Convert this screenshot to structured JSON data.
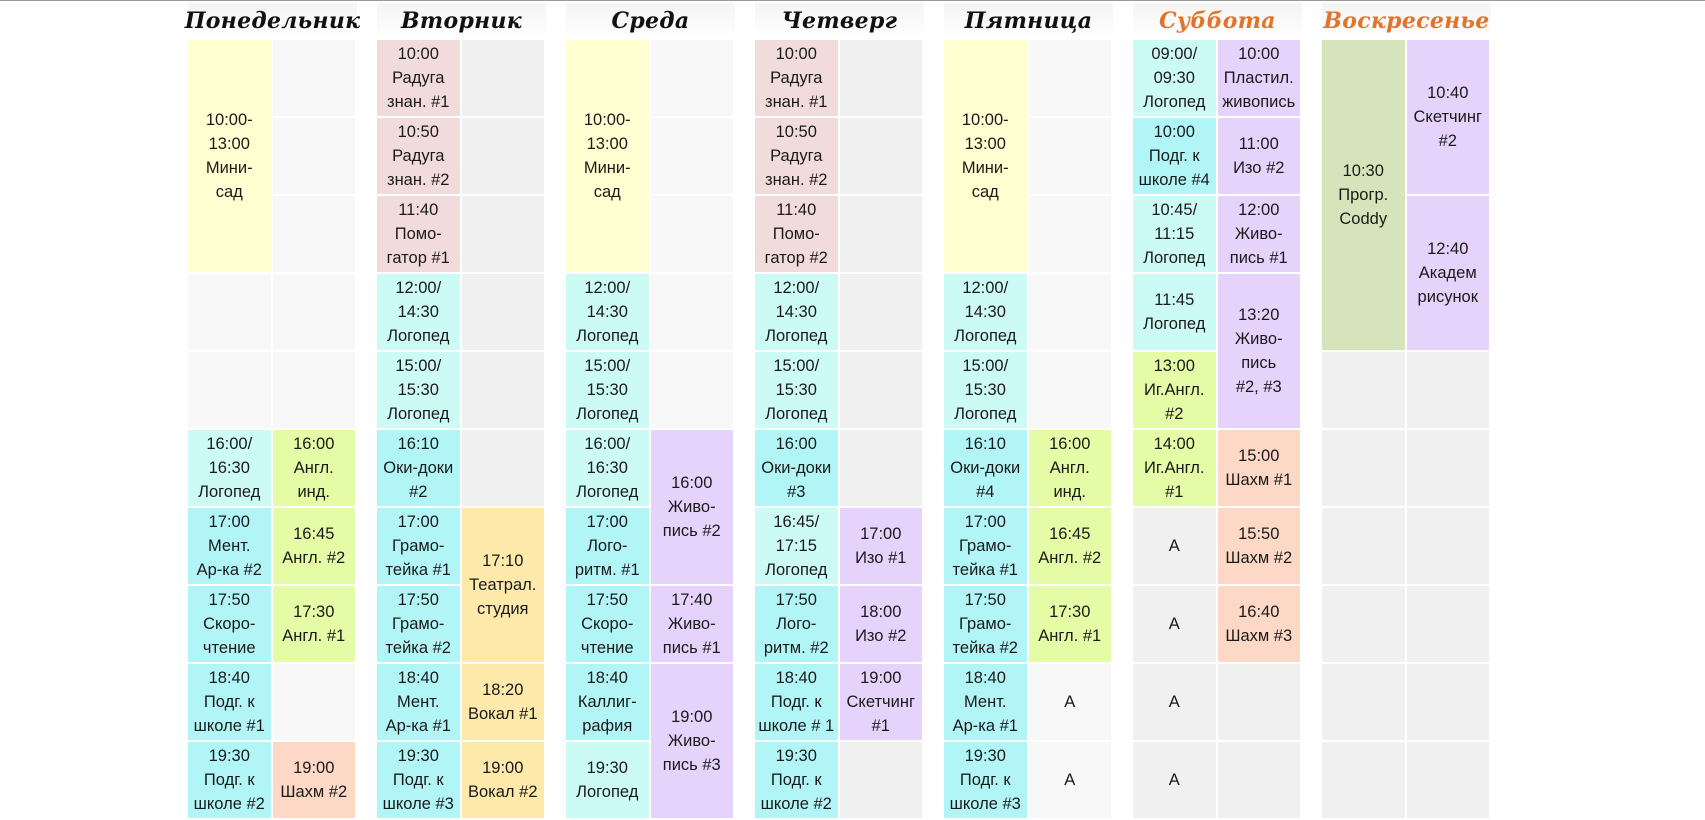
{
  "days": [
    {
      "name": "Понедельник",
      "weekend": false
    },
    {
      "name": "Вторник",
      "weekend": false
    },
    {
      "name": "Среда",
      "weekend": false
    },
    {
      "name": "Четверг",
      "weekend": false
    },
    {
      "name": "Пятница",
      "weekend": false
    },
    {
      "name": "Суббота",
      "weekend": true
    },
    {
      "name": "Воскресенье",
      "weekend": true
    }
  ],
  "colors": {
    "yellow": "#ffffd1",
    "pink": "#f2dcdb",
    "cyan": "#b2f5f7",
    "cyan_light": "#ccfaf5",
    "light_green": "#e4fca6",
    "purple": "#e6d3fc",
    "orange": "#fde9a9",
    "salmon": "#fdd8c6",
    "olive": "#d6e4bc",
    "empty": "#f8f8f8",
    "grey": "#f0f0f0",
    "weekend_header": "#e0742d"
  },
  "entries": [
    {
      "day": 0,
      "col": 0,
      "row": 0,
      "span": 3,
      "color": "yellow",
      "text": "10:00-\n13:00\nМини-\nсад"
    },
    {
      "day": 0,
      "col": 1,
      "row": 0,
      "span": 1,
      "color": "empty",
      "text": ""
    },
    {
      "day": 0,
      "col": 1,
      "row": 1,
      "span": 1,
      "color": "empty",
      "text": ""
    },
    {
      "day": 0,
      "col": 1,
      "row": 2,
      "span": 1,
      "color": "empty",
      "text": ""
    },
    {
      "day": 0,
      "col": 0,
      "row": 3,
      "span": 1,
      "color": "empty",
      "text": ""
    },
    {
      "day": 0,
      "col": 1,
      "row": 3,
      "span": 1,
      "color": "empty",
      "text": ""
    },
    {
      "day": 0,
      "col": 0,
      "row": 4,
      "span": 1,
      "color": "empty",
      "text": ""
    },
    {
      "day": 0,
      "col": 1,
      "row": 4,
      "span": 1,
      "color": "empty",
      "text": ""
    },
    {
      "day": 0,
      "col": 0,
      "row": 5,
      "span": 1,
      "color": "cyan_light",
      "text": "16:00/\n16:30\nЛогопед"
    },
    {
      "day": 0,
      "col": 1,
      "row": 5,
      "span": 1,
      "color": "light_green",
      "text": "16:00\nАнгл.\nинд."
    },
    {
      "day": 0,
      "col": 0,
      "row": 6,
      "span": 1,
      "color": "cyan",
      "text": "17:00\nМент.\nАр-ка #2"
    },
    {
      "day": 0,
      "col": 1,
      "row": 6,
      "span": 1,
      "color": "light_green",
      "text": "16:45\nАнгл. #2"
    },
    {
      "day": 0,
      "col": 0,
      "row": 7,
      "span": 1,
      "color": "cyan",
      "text": "17:50\nСкоро-\nчтение"
    },
    {
      "day": 0,
      "col": 1,
      "row": 7,
      "span": 1,
      "color": "light_green",
      "text": "17:30\nАнгл. #1"
    },
    {
      "day": 0,
      "col": 0,
      "row": 8,
      "span": 1,
      "color": "cyan",
      "text": "18:40\nПодг. к\nшколе #1"
    },
    {
      "day": 0,
      "col": 1,
      "row": 8,
      "span": 1,
      "color": "empty",
      "text": ""
    },
    {
      "day": 0,
      "col": 0,
      "row": 9,
      "span": 1,
      "color": "cyan",
      "text": "19:30\nПодг. к\nшколе #2"
    },
    {
      "day": 0,
      "col": 1,
      "row": 9,
      "span": 1,
      "color": "salmon",
      "text": "19:00\nШахм #2"
    },
    {
      "day": 1,
      "col": 0,
      "row": 0,
      "span": 1,
      "color": "pink",
      "text": "10:00\nРадуга\nзнан. #1"
    },
    {
      "day": 1,
      "col": 0,
      "row": 1,
      "span": 1,
      "color": "pink",
      "text": "10:50\nРадуга\nзнан. #2"
    },
    {
      "day": 1,
      "col": 0,
      "row": 2,
      "span": 1,
      "color": "pink",
      "text": "11:40\nПомо-\nгатор #1"
    },
    {
      "day": 1,
      "col": 1,
      "row": 0,
      "span": 1,
      "color": "grey",
      "text": ""
    },
    {
      "day": 1,
      "col": 1,
      "row": 1,
      "span": 1,
      "color": "grey",
      "text": ""
    },
    {
      "day": 1,
      "col": 1,
      "row": 2,
      "span": 1,
      "color": "grey",
      "text": ""
    },
    {
      "day": 1,
      "col": 0,
      "row": 3,
      "span": 1,
      "color": "cyan_light",
      "text": "12:00/\n14:30\nЛогопед"
    },
    {
      "day": 1,
      "col": 1,
      "row": 3,
      "span": 1,
      "color": "grey",
      "text": ""
    },
    {
      "day": 1,
      "col": 0,
      "row": 4,
      "span": 1,
      "color": "cyan_light",
      "text": "15:00/\n15:30\nЛогопед"
    },
    {
      "day": 1,
      "col": 1,
      "row": 4,
      "span": 1,
      "color": "grey",
      "text": ""
    },
    {
      "day": 1,
      "col": 0,
      "row": 5,
      "span": 1,
      "color": "cyan",
      "text": "16:10\nОки-доки\n#2"
    },
    {
      "day": 1,
      "col": 1,
      "row": 5,
      "span": 1,
      "color": "grey",
      "text": ""
    },
    {
      "day": 1,
      "col": 0,
      "row": 6,
      "span": 1,
      "color": "cyan",
      "text": "17:00\nГрамо-\nтейка #1"
    },
    {
      "day": 1,
      "col": 1,
      "row": 6,
      "span": 2,
      "color": "orange",
      "text": "17:10\nТеатрал.\nстудия"
    },
    {
      "day": 1,
      "col": 0,
      "row": 7,
      "span": 1,
      "color": "cyan",
      "text": "17:50\nГрамо-\nтейка #2"
    },
    {
      "day": 1,
      "col": 0,
      "row": 8,
      "span": 1,
      "color": "cyan",
      "text": "18:40\nМент.\nАр-ка #1"
    },
    {
      "day": 1,
      "col": 1,
      "row": 8,
      "span": 1,
      "color": "orange",
      "text": "18:20\nВокал #1"
    },
    {
      "day": 1,
      "col": 0,
      "row": 9,
      "span": 1,
      "color": "cyan",
      "text": "19:30\nПодг. к\nшколе #3"
    },
    {
      "day": 1,
      "col": 1,
      "row": 9,
      "span": 1,
      "color": "orange",
      "text": "19:00\nВокал #2"
    },
    {
      "day": 2,
      "col": 0,
      "row": 0,
      "span": 3,
      "color": "yellow",
      "text": "10:00-\n13:00\nМини-\nсад"
    },
    {
      "day": 2,
      "col": 1,
      "row": 0,
      "span": 1,
      "color": "empty",
      "text": ""
    },
    {
      "day": 2,
      "col": 1,
      "row": 1,
      "span": 1,
      "color": "empty",
      "text": ""
    },
    {
      "day": 2,
      "col": 1,
      "row": 2,
      "span": 1,
      "color": "empty",
      "text": ""
    },
    {
      "day": 2,
      "col": 0,
      "row": 3,
      "span": 1,
      "color": "cyan_light",
      "text": "12:00/\n14:30\nЛогопед"
    },
    {
      "day": 2,
      "col": 1,
      "row": 3,
      "span": 1,
      "color": "empty",
      "text": ""
    },
    {
      "day": 2,
      "col": 0,
      "row": 4,
      "span": 1,
      "color": "cyan_light",
      "text": "15:00/\n15:30\nЛогопед"
    },
    {
      "day": 2,
      "col": 1,
      "row": 4,
      "span": 1,
      "color": "empty",
      "text": ""
    },
    {
      "day": 2,
      "col": 0,
      "row": 5,
      "span": 1,
      "color": "cyan_light",
      "text": "16:00/\n16:30\nЛогопед"
    },
    {
      "day": 2,
      "col": 1,
      "row": 5,
      "span": 2,
      "color": "purple",
      "text": "16:00\nЖиво-\nпись #2"
    },
    {
      "day": 2,
      "col": 0,
      "row": 6,
      "span": 1,
      "color": "cyan",
      "text": "17:00\nЛого-\nритм. #1"
    },
    {
      "day": 2,
      "col": 0,
      "row": 7,
      "span": 1,
      "color": "cyan",
      "text": "17:50\nСкоро-\nчтение"
    },
    {
      "day": 2,
      "col": 1,
      "row": 7,
      "span": 1,
      "color": "purple",
      "text": "17:40\nЖиво-\nпись #1"
    },
    {
      "day": 2,
      "col": 0,
      "row": 8,
      "span": 1,
      "color": "cyan",
      "text": "18:40\nКаллиг-\nрафия"
    },
    {
      "day": 2,
      "col": 1,
      "row": 8,
      "span": 2,
      "color": "purple",
      "text": "19:00\nЖиво-\nпись #3"
    },
    {
      "day": 2,
      "col": 0,
      "row": 9,
      "span": 1,
      "color": "cyan_light",
      "text": "19:30\nЛогопед"
    },
    {
      "day": 3,
      "col": 0,
      "row": 0,
      "span": 1,
      "color": "pink",
      "text": "10:00\nРадуга\nзнан. #1"
    },
    {
      "day": 3,
      "col": 0,
      "row": 1,
      "span": 1,
      "color": "pink",
      "text": "10:50\nРадуга\nзнан. #2"
    },
    {
      "day": 3,
      "col": 0,
      "row": 2,
      "span": 1,
      "color": "pink",
      "text": "11:40\nПомо-\nгатор #2"
    },
    {
      "day": 3,
      "col": 1,
      "row": 0,
      "span": 1,
      "color": "grey",
      "text": ""
    },
    {
      "day": 3,
      "col": 1,
      "row": 1,
      "span": 1,
      "color": "grey",
      "text": ""
    },
    {
      "day": 3,
      "col": 1,
      "row": 2,
      "span": 1,
      "color": "grey",
      "text": ""
    },
    {
      "day": 3,
      "col": 0,
      "row": 3,
      "span": 1,
      "color": "cyan_light",
      "text": "12:00/\n14:30\nЛогопед"
    },
    {
      "day": 3,
      "col": 1,
      "row": 3,
      "span": 1,
      "color": "grey",
      "text": ""
    },
    {
      "day": 3,
      "col": 0,
      "row": 4,
      "span": 1,
      "color": "cyan_light",
      "text": "15:00/\n15:30\nЛогопед"
    },
    {
      "day": 3,
      "col": 1,
      "row": 4,
      "span": 1,
      "color": "grey",
      "text": ""
    },
    {
      "day": 3,
      "col": 0,
      "row": 5,
      "span": 1,
      "color": "cyan",
      "text": "16:00\nОки-доки\n#3"
    },
    {
      "day": 3,
      "col": 1,
      "row": 5,
      "span": 1,
      "color": "grey",
      "text": ""
    },
    {
      "day": 3,
      "col": 0,
      "row": 6,
      "span": 1,
      "color": "cyan_light",
      "text": "16:45/\n17:15\nЛогопед"
    },
    {
      "day": 3,
      "col": 1,
      "row": 6,
      "span": 1,
      "color": "purple",
      "text": "17:00\nИзо #1"
    },
    {
      "day": 3,
      "col": 0,
      "row": 7,
      "span": 1,
      "color": "cyan",
      "text": "17:50\nЛого-\nритм. #2"
    },
    {
      "day": 3,
      "col": 1,
      "row": 7,
      "span": 1,
      "color": "purple",
      "text": "18:00\nИзо #2"
    },
    {
      "day": 3,
      "col": 0,
      "row": 8,
      "span": 1,
      "color": "cyan",
      "text": "18:40\nПодг. к\nшколе # 1"
    },
    {
      "day": 3,
      "col": 1,
      "row": 8,
      "span": 1,
      "color": "purple",
      "text": "19:00\nСкетчинг\n#1"
    },
    {
      "day": 3,
      "col": 0,
      "row": 9,
      "span": 1,
      "color": "cyan",
      "text": "19:30\nПодг. к\nшколе #2"
    },
    {
      "day": 3,
      "col": 1,
      "row": 9,
      "span": 1,
      "color": "grey",
      "text": ""
    },
    {
      "day": 4,
      "col": 0,
      "row": 0,
      "span": 3,
      "color": "yellow",
      "text": "10:00-\n13:00\nМини-\nсад"
    },
    {
      "day": 4,
      "col": 1,
      "row": 0,
      "span": 1,
      "color": "empty",
      "text": ""
    },
    {
      "day": 4,
      "col": 1,
      "row": 1,
      "span": 1,
      "color": "empty",
      "text": ""
    },
    {
      "day": 4,
      "col": 1,
      "row": 2,
      "span": 1,
      "color": "empty",
      "text": ""
    },
    {
      "day": 4,
      "col": 0,
      "row": 3,
      "span": 1,
      "color": "cyan_light",
      "text": "12:00/\n14:30\nЛогопед"
    },
    {
      "day": 4,
      "col": 1,
      "row": 3,
      "span": 1,
      "color": "empty",
      "text": ""
    },
    {
      "day": 4,
      "col": 0,
      "row": 4,
      "span": 1,
      "color": "cyan_light",
      "text": "15:00/\n15:30\nЛогопед"
    },
    {
      "day": 4,
      "col": 1,
      "row": 4,
      "span": 1,
      "color": "empty",
      "text": ""
    },
    {
      "day": 4,
      "col": 0,
      "row": 5,
      "span": 1,
      "color": "cyan",
      "text": "16:10\nОки-доки\n#4"
    },
    {
      "day": 4,
      "col": 1,
      "row": 5,
      "span": 1,
      "color": "light_green",
      "text": "16:00\nАнгл.\nинд."
    },
    {
      "day": 4,
      "col": 0,
      "row": 6,
      "span": 1,
      "color": "cyan",
      "text": "17:00\nГрамо-\nтейка #1"
    },
    {
      "day": 4,
      "col": 1,
      "row": 6,
      "span": 1,
      "color": "light_green",
      "text": "16:45\nАнгл. #2"
    },
    {
      "day": 4,
      "col": 0,
      "row": 7,
      "span": 1,
      "color": "cyan",
      "text": "17:50\nГрамо-\nтейка #2"
    },
    {
      "day": 4,
      "col": 1,
      "row": 7,
      "span": 1,
      "color": "light_green",
      "text": "17:30\nАнгл. #1"
    },
    {
      "day": 4,
      "col": 0,
      "row": 8,
      "span": 1,
      "color": "cyan",
      "text": "18:40\nМент.\nАр-ка #1"
    },
    {
      "day": 4,
      "col": 1,
      "row": 8,
      "span": 1,
      "color": "empty",
      "text": "А"
    },
    {
      "day": 4,
      "col": 0,
      "row": 9,
      "span": 1,
      "color": "cyan",
      "text": "19:30\nПодг. к\nшколе #3"
    },
    {
      "day": 4,
      "col": 1,
      "row": 9,
      "span": 1,
      "color": "empty",
      "text": "А"
    },
    {
      "day": 5,
      "col": 0,
      "row": 0,
      "span": 1,
      "color": "cyan_light",
      "text": "09:00/\n09:30\nЛогопед"
    },
    {
      "day": 5,
      "col": 1,
      "row": 0,
      "span": 1,
      "color": "purple",
      "text": "10:00\nПластил.\nживопись"
    },
    {
      "day": 5,
      "col": 0,
      "row": 1,
      "span": 1,
      "color": "cyan",
      "text": "10:00\nПодг. к\nшколе #4"
    },
    {
      "day": 5,
      "col": 1,
      "row": 1,
      "span": 1,
      "color": "purple",
      "text": "11:00\nИзо #2"
    },
    {
      "day": 5,
      "col": 0,
      "row": 2,
      "span": 1,
      "color": "cyan_light",
      "text": "10:45/\n11:15\nЛогопед"
    },
    {
      "day": 5,
      "col": 1,
      "row": 2,
      "span": 1,
      "color": "purple",
      "text": "12:00\nЖиво-\nпись #1"
    },
    {
      "day": 5,
      "col": 0,
      "row": 3,
      "span": 1,
      "color": "cyan_light",
      "text": "11:45\nЛогопед"
    },
    {
      "day": 5,
      "col": 1,
      "row": 3,
      "span": 2,
      "color": "purple",
      "text": "13:20\nЖиво-\nпись\n#2, #3"
    },
    {
      "day": 5,
      "col": 0,
      "row": 4,
      "span": 1,
      "color": "light_green",
      "text": "13:00\nИг.Англ.\n#2"
    },
    {
      "day": 5,
      "col": 0,
      "row": 5,
      "span": 1,
      "color": "light_green",
      "text": "14:00\nИг.Англ.\n#1"
    },
    {
      "day": 5,
      "col": 1,
      "row": 5,
      "span": 1,
      "color": "salmon",
      "text": "15:00\nШахм #1"
    },
    {
      "day": 5,
      "col": 0,
      "row": 6,
      "span": 1,
      "color": "grey",
      "text": "А"
    },
    {
      "day": 5,
      "col": 1,
      "row": 6,
      "span": 1,
      "color": "salmon",
      "text": "15:50\nШахм #2"
    },
    {
      "day": 5,
      "col": 0,
      "row": 7,
      "span": 1,
      "color": "grey",
      "text": "А"
    },
    {
      "day": 5,
      "col": 1,
      "row": 7,
      "span": 1,
      "color": "salmon",
      "text": "16:40\nШахм #3"
    },
    {
      "day": 5,
      "col": 0,
      "row": 8,
      "span": 1,
      "color": "grey",
      "text": "А"
    },
    {
      "day": 5,
      "col": 1,
      "row": 8,
      "span": 1,
      "color": "grey",
      "text": ""
    },
    {
      "day": 5,
      "col": 0,
      "row": 9,
      "span": 1,
      "color": "grey",
      "text": "А"
    },
    {
      "day": 5,
      "col": 1,
      "row": 9,
      "span": 1,
      "color": "grey",
      "text": ""
    },
    {
      "day": 6,
      "col": 0,
      "row": 0,
      "span": 4,
      "color": "olive",
      "text": "10:30\nПрогр.\nCoddy"
    },
    {
      "day": 6,
      "col": 1,
      "row": 0,
      "span": 2,
      "color": "purple",
      "text": "10:40\nСкетчинг\n#2"
    },
    {
      "day": 6,
      "col": 1,
      "row": 2,
      "span": 2,
      "color": "purple",
      "text": "12:40\nАкадем\nрисунок"
    },
    {
      "day": 6,
      "col": 0,
      "row": 4,
      "span": 1,
      "color": "grey",
      "text": ""
    },
    {
      "day": 6,
      "col": 1,
      "row": 4,
      "span": 1,
      "color": "grey",
      "text": ""
    },
    {
      "day": 6,
      "col": 0,
      "row": 5,
      "span": 1,
      "color": "grey",
      "text": ""
    },
    {
      "day": 6,
      "col": 1,
      "row": 5,
      "span": 1,
      "color": "grey",
      "text": ""
    },
    {
      "day": 6,
      "col": 0,
      "row": 6,
      "span": 1,
      "color": "grey",
      "text": ""
    },
    {
      "day": 6,
      "col": 1,
      "row": 6,
      "span": 1,
      "color": "grey",
      "text": ""
    },
    {
      "day": 6,
      "col": 0,
      "row": 7,
      "span": 1,
      "color": "grey",
      "text": ""
    },
    {
      "day": 6,
      "col": 1,
      "row": 7,
      "span": 1,
      "color": "grey",
      "text": ""
    },
    {
      "day": 6,
      "col": 0,
      "row": 8,
      "span": 1,
      "color": "grey",
      "text": ""
    },
    {
      "day": 6,
      "col": 1,
      "row": 8,
      "span": 1,
      "color": "grey",
      "text": ""
    },
    {
      "day": 6,
      "col": 0,
      "row": 9,
      "span": 1,
      "color": "grey",
      "text": ""
    },
    {
      "day": 6,
      "col": 1,
      "row": 9,
      "span": 1,
      "color": "grey",
      "text": ""
    }
  ]
}
